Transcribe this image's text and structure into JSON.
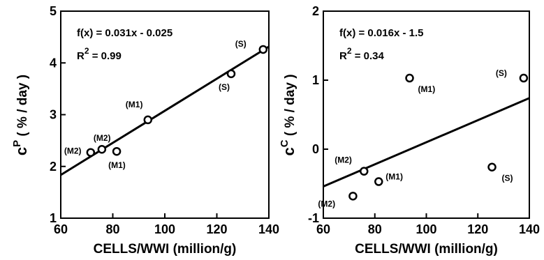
{
  "chart_data": [
    {
      "type": "scatter",
      "xlabel": "CELLS/WWI (million/g)",
      "ylabel": {
        "base": "c",
        "sup": "P",
        "tail": " ( % / day )"
      },
      "xlim": [
        60,
        140
      ],
      "ylim": [
        1,
        5
      ],
      "xticks": [
        60,
        80,
        100,
        120,
        140
      ],
      "yticks": [
        1,
        2,
        3,
        4,
        5
      ],
      "annotation": {
        "fx": "f(x) = 0.031x - 0.025",
        "r2_base": "R",
        "r2_sup": "2",
        "r2_tail": " = 0.99"
      },
      "fit": {
        "slope": 0.031,
        "intercept": -0.025
      },
      "points": [
        {
          "x": 71.5,
          "y": 2.27,
          "label": "(M2)"
        },
        {
          "x": 75.8,
          "y": 2.33,
          "label": "(M2)"
        },
        {
          "x": 81.5,
          "y": 2.29,
          "label": "(M1)"
        },
        {
          "x": 93.5,
          "y": 2.9,
          "label": "(M1)"
        },
        {
          "x": 125.5,
          "y": 3.79,
          "label": "(S)"
        },
        {
          "x": 137.8,
          "y": 4.26,
          "label": "(S)"
        }
      ]
    },
    {
      "type": "scatter",
      "xlabel": "CELLS/WWI (million/g)",
      "ylabel": {
        "base": "c",
        "sup": "C",
        "tail": " ( % / day )"
      },
      "xlim": [
        60,
        140
      ],
      "ylim": [
        -1,
        2
      ],
      "xticks": [
        60,
        80,
        100,
        120,
        140
      ],
      "yticks": [
        -1,
        0,
        1,
        2
      ],
      "annotation": {
        "fx": "f(x) = 0.016x - 1.5",
        "r2_base": "R",
        "r2_sup": "2",
        "r2_tail": " = 0.34"
      },
      "fit": {
        "slope": 0.016,
        "intercept": -1.5
      },
      "points": [
        {
          "x": 71.5,
          "y": -0.68,
          "label": "(M2)"
        },
        {
          "x": 75.8,
          "y": -0.32,
          "label": "(M2)"
        },
        {
          "x": 81.5,
          "y": -0.47,
          "label": "(M1)"
        },
        {
          "x": 93.5,
          "y": 1.03,
          "label": "(M1)"
        },
        {
          "x": 125.5,
          "y": -0.26,
          "label": "(S)"
        },
        {
          "x": 137.8,
          "y": 1.03,
          "label": "(S)"
        }
      ]
    }
  ]
}
